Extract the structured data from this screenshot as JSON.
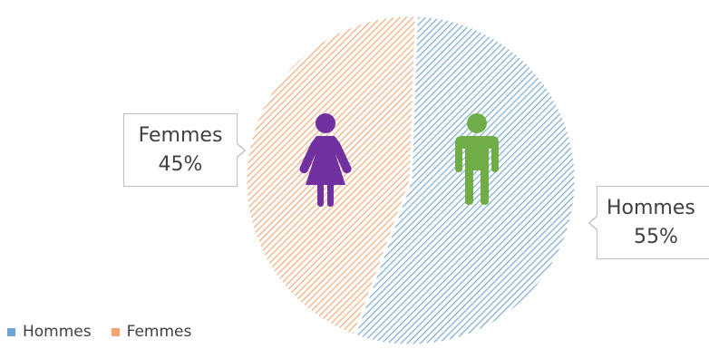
{
  "chart_data": {
    "type": "pie",
    "title": "",
    "slices": [
      {
        "name": "Hommes",
        "value": 55,
        "label": "55%",
        "color": "#9DC3E6",
        "hatch": "#6FA3D6",
        "icon": "male-person-icon",
        "icon_color": "#70AD47"
      },
      {
        "name": "Femmes",
        "value": 45,
        "label": "45%",
        "color": "#F8CBAD",
        "hatch": "#F4A46F",
        "icon": "female-person-icon",
        "icon_color": "#7030A0"
      }
    ],
    "legend": {
      "position": "bottom-left",
      "entries": [
        "Hommes",
        "Femmes"
      ]
    },
    "start_angle_deg": 0,
    "direction": "clockwise"
  }
}
